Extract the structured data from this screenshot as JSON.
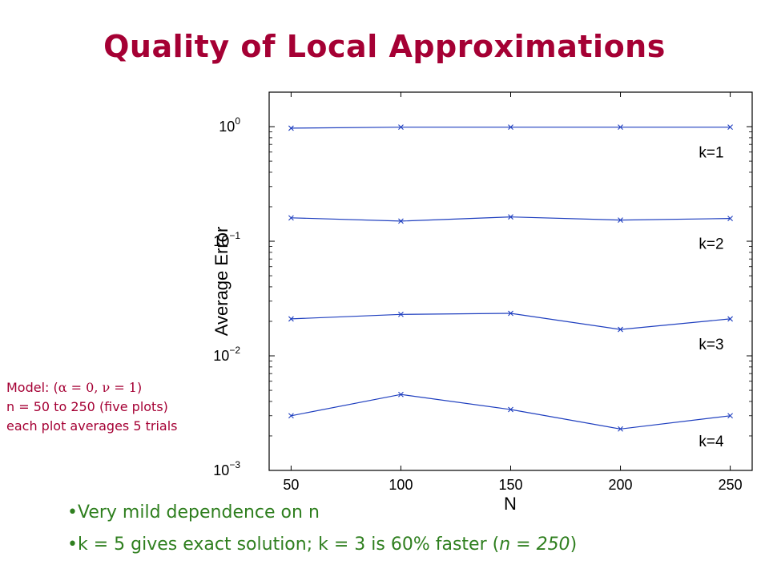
{
  "title": "Quality of Local Approximations",
  "model_note": {
    "line1_prefix": "Model: (",
    "line1_params": "α = 0, ν = 1",
    "line1_suffix": ")",
    "line2": "n = 50 to 250 (five plots)",
    "line3": "each plot averages 5 trials"
  },
  "bullets": {
    "b1": "Very mild dependence on n",
    "b2_prefix": "k = 5 gives exact solution; k = 3 is 60% faster (",
    "b2_italic": "n = 250",
    "b2_suffix": ")"
  },
  "colors": {
    "title": "#a50034",
    "note": "#a50034",
    "bullets": "#2f7f1f",
    "series": "#1f3fbf"
  },
  "chart_data": {
    "type": "line",
    "xlabel": "N",
    "ylabel": "Average Error",
    "x": [
      50,
      100,
      150,
      200,
      250
    ],
    "xticks": [
      50,
      100,
      150,
      200,
      250
    ],
    "xlim": [
      40,
      260
    ],
    "yscale": "log",
    "ylim": [
      0.001,
      2.0
    ],
    "yticks": [
      {
        "value": 1,
        "base": "10",
        "exp": "0"
      },
      {
        "value": 0.1,
        "base": "10",
        "exp": "−1"
      },
      {
        "value": 0.01,
        "base": "10",
        "exp": "−2"
      },
      {
        "value": 0.001,
        "base": "10",
        "exp": "−3"
      }
    ],
    "grid": false,
    "marker": "x",
    "series": [
      {
        "name": "k=1",
        "values": [
          0.97,
          0.99,
          0.99,
          0.99,
          0.99
        ]
      },
      {
        "name": "k=2",
        "values": [
          0.16,
          0.15,
          0.163,
          0.153,
          0.158
        ]
      },
      {
        "name": "k=3",
        "values": [
          0.021,
          0.023,
          0.0235,
          0.017,
          0.021
        ]
      },
      {
        "name": "k=4",
        "values": [
          0.003,
          0.0046,
          0.0034,
          0.0023,
          0.003
        ]
      }
    ]
  }
}
